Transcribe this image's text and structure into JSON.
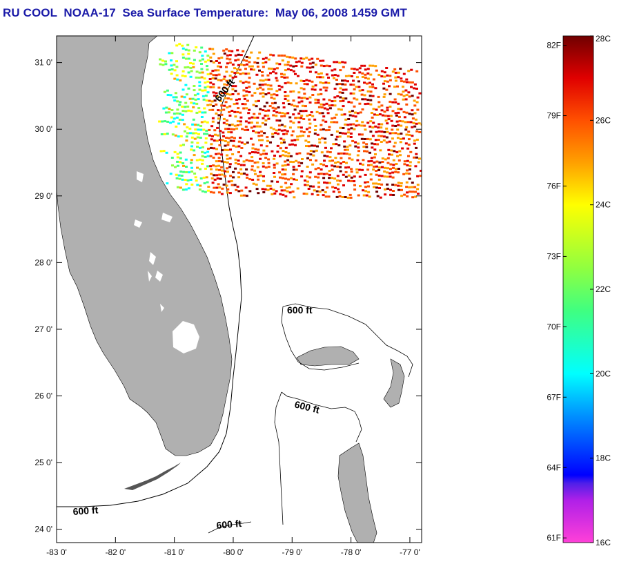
{
  "title": "RU COOL  NOAA-17  Sea Surface Temperature:  May 06, 2008 1459 GMT",
  "map": {
    "lon_range": [
      -83.0,
      -76.8
    ],
    "lat_range": [
      23.8,
      31.4
    ],
    "lon_ticks": [
      {
        "value": -83,
        "label": "-83 0'"
      },
      {
        "value": -82,
        "label": "-82 0'"
      },
      {
        "value": -81,
        "label": "-81 0'"
      },
      {
        "value": -80,
        "label": "-80 0'"
      },
      {
        "value": -79,
        "label": "-79 0'"
      },
      {
        "value": -78,
        "label": "-78 0'"
      },
      {
        "value": -77,
        "label": "-77 0'"
      }
    ],
    "lat_ticks": [
      {
        "value": 31,
        "label": "31 0'"
      },
      {
        "value": 30,
        "label": "30 0'"
      },
      {
        "value": 29,
        "label": "29 0'"
      },
      {
        "value": 28,
        "label": "28 0'"
      },
      {
        "value": 27,
        "label": "27 0'"
      },
      {
        "value": 26,
        "label": "26 0'"
      },
      {
        "value": 25,
        "label": "25 0'"
      },
      {
        "value": 24,
        "label": "24 0'"
      }
    ],
    "contour_labels": [
      {
        "text": "600 ft",
        "name": "contour-label-north"
      },
      {
        "text": "600 ft",
        "name": "contour-label-bahamas-north"
      },
      {
        "text": "600 ft",
        "name": "contour-label-bahamas-central"
      },
      {
        "text": "600 ft",
        "name": "contour-label-west"
      },
      {
        "text": "600 ft",
        "name": "contour-label-south"
      }
    ],
    "land_color": "#b0b0b0",
    "ocean_color": "#ffffff"
  },
  "colorbar": {
    "range_c": [
      16,
      28
    ],
    "celsius_labels": [
      {
        "value": 28,
        "label": "28C"
      },
      {
        "value": 26,
        "label": "26C"
      },
      {
        "value": 24,
        "label": "24C"
      },
      {
        "value": 22,
        "label": "22C"
      },
      {
        "value": 20,
        "label": "20C"
      },
      {
        "value": 18,
        "label": "18C"
      },
      {
        "value": 16,
        "label": "16C"
      }
    ],
    "fahrenheit_labels": [
      {
        "value": 82,
        "label": "82F"
      },
      {
        "value": 79,
        "label": "79F"
      },
      {
        "value": 76,
        "label": "76F"
      },
      {
        "value": 73,
        "label": "73F"
      },
      {
        "value": 70,
        "label": "70F"
      },
      {
        "value": 67,
        "label": "67F"
      },
      {
        "value": 64,
        "label": "64F"
      },
      {
        "value": 61,
        "label": "61F"
      }
    ],
    "color_stops": [
      {
        "c": 16,
        "color": "#ff40d8"
      },
      {
        "c": 17,
        "color": "#b020e8"
      },
      {
        "c": 17.4,
        "color": "#5020e8"
      },
      {
        "c": 17.6,
        "color": "#0000ff"
      },
      {
        "c": 19,
        "color": "#0090ff"
      },
      {
        "c": 20,
        "color": "#00ffff"
      },
      {
        "c": 21.5,
        "color": "#40ff80"
      },
      {
        "c": 22.5,
        "color": "#90ff40"
      },
      {
        "c": 24,
        "color": "#ffff00"
      },
      {
        "c": 25,
        "color": "#ffa000"
      },
      {
        "c": 26,
        "color": "#ff5000"
      },
      {
        "c": 27,
        "color": "#e00000"
      },
      {
        "c": 28,
        "color": "#700000"
      }
    ]
  }
}
